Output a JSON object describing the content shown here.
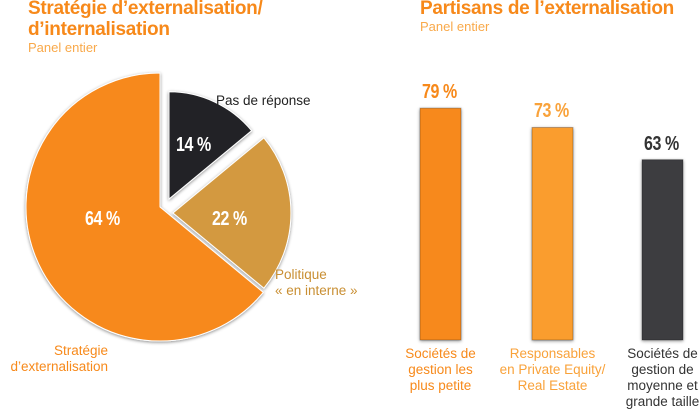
{
  "chart_data": [
    {
      "type": "pie",
      "title": "Stratégie d’externalisation/\nd’internalisation",
      "subtitle": "Panel entier",
      "slices": [
        {
          "label": "Pas de réponse",
          "value": 14,
          "value_label": "14 %",
          "color": "#232427",
          "label_color": "#222222"
        },
        {
          "label": "Politique\n« en interne »",
          "value": 22,
          "value_label": "22 %",
          "color": "#d3993f",
          "label_color": "#c98f33"
        },
        {
          "label": "Stratégie\nd’externalisation",
          "value": 64,
          "value_label": "64 %",
          "color": "#f7891a",
          "label_color": "#f7891a"
        }
      ]
    },
    {
      "type": "bar",
      "title": "Partisans de l’externalisation",
      "subtitle": "Panel entier",
      "categories": [
        "Sociétés de\ngestion les\nplus petite",
        "Responsables\nen Private Equity/\nReal Estate",
        "Sociétés de\ngestion de\nmoyenne et\ngrande taille"
      ],
      "values": [
        79,
        73,
        63
      ],
      "value_labels": [
        "79 %",
        "73 %",
        "63 %"
      ],
      "colors": [
        "#f7891a",
        "#fa9d2e",
        "#3d3e40"
      ],
      "label_colors": [
        "#f7891a",
        "#f9a23a",
        "#333333"
      ]
    }
  ]
}
